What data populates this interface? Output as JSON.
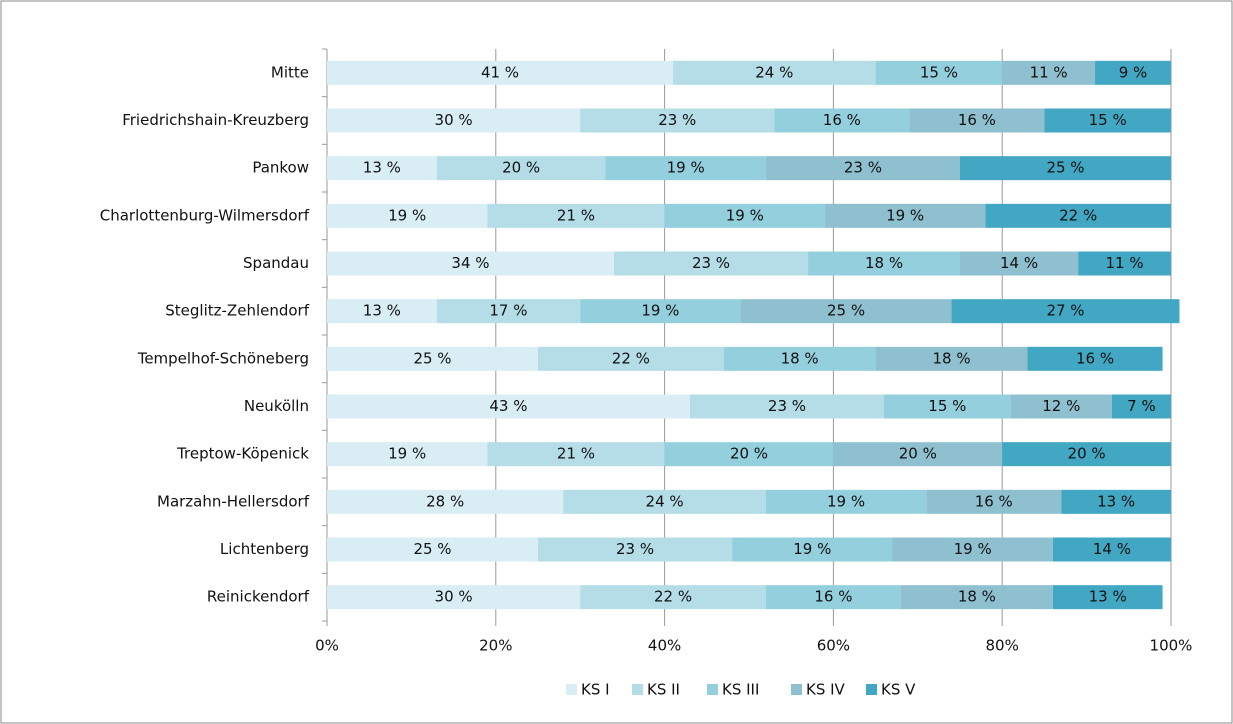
{
  "chart_data": {
    "type": "stacked-bar-horizontal",
    "categories": [
      "Mitte",
      "Friedrichshain-Kreuzberg",
      "Pankow",
      "Charlottenburg-Wilmersdorf",
      "Spandau",
      "Steglitz-Zehlendorf",
      "Tempelhof-Schöneberg",
      "Neukölln",
      "Treptow-Köpenick",
      "Marzahn-Hellersdorf",
      "Lichtenberg",
      "Reinickendorf"
    ],
    "series": [
      {
        "name": "KS I",
        "color": "#d9eef4",
        "values": [
          41,
          30,
          13,
          19,
          34,
          13,
          25,
          43,
          19,
          28,
          25,
          30
        ],
        "value_labels": [
          "41 %",
          "30 %",
          "13 %",
          "19 %",
          "34 %",
          "13 %",
          "25 %",
          "43 %",
          "19 %",
          "28 %",
          "25 %",
          "30 %"
        ]
      },
      {
        "name": "KS II",
        "color": "#b4dde8",
        "values": [
          24,
          23,
          20,
          21,
          23,
          17,
          22,
          23,
          21,
          24,
          23,
          22
        ],
        "value_labels": [
          "24 %",
          "23 %",
          "20 %",
          "21 %",
          "23 %",
          "17 %",
          "22 %",
          "23 %",
          "21 %",
          "24 %",
          "23 %",
          "22 %"
        ]
      },
      {
        "name": "KS III",
        "color": "#94cfde",
        "values": [
          15,
          16,
          19,
          19,
          18,
          19,
          18,
          15,
          20,
          19,
          19,
          16
        ],
        "value_labels": [
          "15 %",
          "16 %",
          "19 %",
          "19 %",
          "18 %",
          "19 %",
          "18 %",
          "15 %",
          "20 %",
          "19 %",
          "19 %",
          "16 %"
        ]
      },
      {
        "name": "KS IV",
        "color": "#8fc0d0",
        "values": [
          11,
          16,
          23,
          19,
          14,
          25,
          18,
          12,
          20,
          16,
          19,
          18
        ],
        "value_labels": [
          "11 %",
          "16 %",
          "23 %",
          "19 %",
          "14 %",
          "25 %",
          "18 %",
          "12 %",
          "20 %",
          "16 %",
          "19 %",
          "18 %"
        ]
      },
      {
        "name": "KS V",
        "color": "#41a7c3",
        "values": [
          9,
          15,
          25,
          22,
          11,
          27,
          16,
          7,
          20,
          13,
          14,
          13
        ],
        "value_labels": [
          "9 %",
          "15 %",
          "25 %",
          "22 %",
          "11 %",
          "27 %",
          "16 %",
          "7 %",
          "20 %",
          "13 %",
          "14 %",
          "13 %"
        ]
      }
    ],
    "xlim": [
      0,
      100
    ],
    "xticks": [
      {
        "value": 0,
        "label": "0%"
      },
      {
        "value": 20,
        "label": "20%"
      },
      {
        "value": 40,
        "label": "40%"
      },
      {
        "value": 60,
        "label": "60%"
      },
      {
        "value": 80,
        "label": "80%"
      },
      {
        "value": 100,
        "label": "100%"
      }
    ],
    "grid": true
  }
}
